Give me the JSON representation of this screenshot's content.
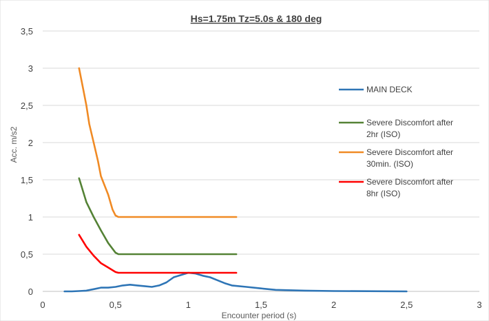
{
  "chart_data": {
    "type": "line",
    "title": "Hs=1.75m Tz=5.0s & 180 deg",
    "xlabel": "Encounter period (s)",
    "ylabel": "Acc. m/s2",
    "xlim": [
      0,
      3
    ],
    "ylim": [
      0,
      3.5
    ],
    "x_ticks": [
      "0",
      "0,5",
      "1",
      "1,5",
      "2",
      "2,5",
      "3"
    ],
    "y_ticks": [
      "0",
      "0,5",
      "1",
      "1,5",
      "2",
      "2,5",
      "3",
      "3,5"
    ],
    "grid": "horizontal",
    "legend_position": "right",
    "series": [
      {
        "name": "MAIN DECK",
        "color": "#2E75B6",
        "points": [
          [
            0.15,
            0.0
          ],
          [
            0.2,
            0.0
          ],
          [
            0.25,
            0.005
          ],
          [
            0.3,
            0.01
          ],
          [
            0.35,
            0.03
          ],
          [
            0.4,
            0.05
          ],
          [
            0.45,
            0.05
          ],
          [
            0.5,
            0.06
          ],
          [
            0.55,
            0.08
          ],
          [
            0.6,
            0.09
          ],
          [
            0.65,
            0.08
          ],
          [
            0.7,
            0.07
          ],
          [
            0.75,
            0.06
          ],
          [
            0.8,
            0.08
          ],
          [
            0.85,
            0.12
          ],
          [
            0.9,
            0.19
          ],
          [
            0.95,
            0.22
          ],
          [
            1.0,
            0.25
          ],
          [
            1.05,
            0.24
          ],
          [
            1.1,
            0.21
          ],
          [
            1.15,
            0.19
          ],
          [
            1.2,
            0.15
          ],
          [
            1.25,
            0.11
          ],
          [
            1.3,
            0.08
          ],
          [
            1.4,
            0.06
          ],
          [
            1.5,
            0.04
          ],
          [
            1.6,
            0.02
          ],
          [
            1.8,
            0.01
          ],
          [
            2.0,
            0.005
          ],
          [
            2.5,
            0.0
          ]
        ]
      },
      {
        "name": "Severe Discomfort after 2hr (ISO)",
        "color": "#548235",
        "points": [
          [
            0.25,
            1.52
          ],
          [
            0.3,
            1.2
          ],
          [
            0.35,
            1.0
          ],
          [
            0.4,
            0.82
          ],
          [
            0.45,
            0.65
          ],
          [
            0.5,
            0.52
          ],
          [
            0.52,
            0.5
          ],
          [
            1.33,
            0.5
          ]
        ]
      },
      {
        "name": "Severe Discomfort after 30min. (ISO)",
        "color": "#F08A24",
        "points": [
          [
            0.25,
            3.0
          ],
          [
            0.28,
            2.7
          ],
          [
            0.3,
            2.5
          ],
          [
            0.32,
            2.25
          ],
          [
            0.35,
            2.0
          ],
          [
            0.38,
            1.75
          ],
          [
            0.4,
            1.55
          ],
          [
            0.45,
            1.3
          ],
          [
            0.48,
            1.1
          ],
          [
            0.5,
            1.02
          ],
          [
            0.52,
            1.0
          ],
          [
            1.33,
            1.0
          ]
        ]
      },
      {
        "name": "Severe Discomfort after 8hr (ISO)",
        "color": "#FF0000",
        "points": [
          [
            0.25,
            0.76
          ],
          [
            0.3,
            0.6
          ],
          [
            0.35,
            0.48
          ],
          [
            0.4,
            0.38
          ],
          [
            0.45,
            0.32
          ],
          [
            0.5,
            0.26
          ],
          [
            0.52,
            0.25
          ],
          [
            1.33,
            0.25
          ]
        ]
      }
    ],
    "legend": [
      {
        "label_lines": [
          "MAIN DECK"
        ],
        "color": "#2E75B6"
      },
      {
        "label_lines": [
          "Severe Discomfort after",
          "2hr (ISO)"
        ],
        "color": "#548235"
      },
      {
        "label_lines": [
          "Severe Discomfort after",
          "30min. (ISO)"
        ],
        "color": "#F08A24"
      },
      {
        "label_lines": [
          "Severe Discomfort after",
          "8hr (ISO)"
        ],
        "color": "#FF0000"
      }
    ]
  }
}
